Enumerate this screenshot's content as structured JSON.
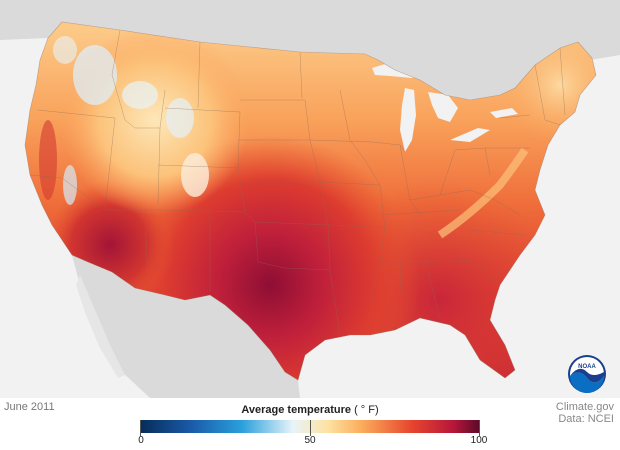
{
  "map": {
    "date_label": "June 2011",
    "legend": {
      "title": "Average temperature",
      "unit": "( ° F)",
      "ticks": [
        "0",
        "50",
        "100"
      ],
      "tick_values": [
        0,
        50,
        100
      ],
      "range": [
        0,
        100
      ],
      "colors": {
        "stop_0": "#052d58",
        "stop_15": "#1a5aa8",
        "stop_30": "#2aa0dc",
        "stop_45": "#e8f4fa",
        "stop_55": "#fde3a4",
        "stop_65": "#fbae5c",
        "stop_80": "#e6452e",
        "stop_92": "#b8173a",
        "stop_100": "#5a0a2a"
      }
    },
    "credit": {
      "site": "Climate.gov",
      "data": "Data: NCEI"
    },
    "logo": {
      "text": "NOAA",
      "icon": "noaa-logo-icon"
    },
    "colors": {
      "ocean": "#f2f2f2",
      "land_outside": "#dadada",
      "state_border": "#8a6a5a",
      "hot_core": "#8e0e34",
      "warm": "#df3f2f",
      "mild": "#f8a459",
      "cool": "#fde7b8",
      "cold": "#d8ecf7"
    }
  }
}
